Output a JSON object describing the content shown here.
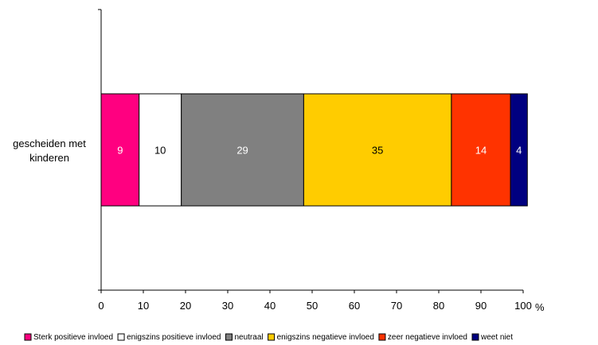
{
  "chart_data": {
    "type": "bar",
    "orientation": "horizontal",
    "stacked": true,
    "categories": [
      "gescheiden met kinderen"
    ],
    "series": [
      {
        "name": "Sterk positieve invloed",
        "values": [
          9
        ],
        "color": "#FF0080"
      },
      {
        "name": "enigszins positieve invloed",
        "values": [
          10
        ],
        "color": "#FFFFFF"
      },
      {
        "name": "neutraal",
        "values": [
          29
        ],
        "color": "#808080"
      },
      {
        "name": "enigszins negatieve invloed",
        "values": [
          35
        ],
        "color": "#FFCC00"
      },
      {
        "name": "zeer negatieve invloed",
        "values": [
          14
        ],
        "color": "#FF3300"
      },
      {
        "name": "weet niet",
        "values": [
          4
        ],
        "color": "#000080"
      }
    ],
    "data_labels": [
      "9",
      "10",
      "29",
      "35",
      "14",
      "4"
    ],
    "data_label_colors": [
      "#FFFFFF",
      "#000000",
      "#FFFFFF",
      "#000000",
      "#FFFFFF",
      "#FFFFFF"
    ],
    "category_label_lines": [
      "gescheiden met",
      "kinderen"
    ],
    "x_ticks": [
      0,
      10,
      20,
      30,
      40,
      50,
      60,
      70,
      80,
      90,
      100
    ],
    "x_tick_labels": [
      "0",
      "10",
      "20",
      "30",
      "40",
      "50",
      "60",
      "70",
      "80",
      "90",
      "100"
    ],
    "x_unit": "%",
    "xlim": [
      0,
      100
    ],
    "grid": false,
    "legend_position": "bottom"
  }
}
